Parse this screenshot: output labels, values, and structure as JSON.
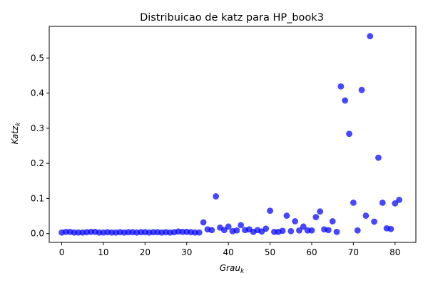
{
  "chart_data": {
    "type": "scatter",
    "title": "Distribuicao de katz para HP_book3",
    "xlabel": "Grau",
    "xlabel_sub": "k",
    "ylabel": "Katz",
    "ylabel_sub": "k",
    "xlim": [
      -3,
      85
    ],
    "ylim": [
      -0.025,
      0.59
    ],
    "xticks": [
      0,
      10,
      20,
      30,
      40,
      50,
      60,
      70,
      80
    ],
    "yticks": [
      0.0,
      0.1,
      0.2,
      0.3,
      0.4,
      0.5
    ],
    "ytick_labels": [
      "0.0",
      "0.1",
      "0.2",
      "0.3",
      "0.4",
      "0.5"
    ],
    "grid": false,
    "marker_color": "#0000ff",
    "marker_alpha": 0.72,
    "points": [
      [
        0,
        0.003
      ],
      [
        1,
        0.005
      ],
      [
        2,
        0.005
      ],
      [
        3,
        0.003
      ],
      [
        4,
        0.003
      ],
      [
        5,
        0.003
      ],
      [
        6,
        0.004
      ],
      [
        7,
        0.005
      ],
      [
        8,
        0.005
      ],
      [
        9,
        0.003
      ],
      [
        10,
        0.003
      ],
      [
        11,
        0.004
      ],
      [
        12,
        0.003
      ],
      [
        13,
        0.003
      ],
      [
        14,
        0.004
      ],
      [
        15,
        0.003
      ],
      [
        16,
        0.004
      ],
      [
        17,
        0.004
      ],
      [
        18,
        0.003
      ],
      [
        19,
        0.004
      ],
      [
        20,
        0.004
      ],
      [
        21,
        0.003
      ],
      [
        22,
        0.004
      ],
      [
        23,
        0.004
      ],
      [
        24,
        0.003
      ],
      [
        25,
        0.004
      ],
      [
        26,
        0.003
      ],
      [
        27,
        0.004
      ],
      [
        28,
        0.006
      ],
      [
        29,
        0.005
      ],
      [
        30,
        0.005
      ],
      [
        31,
        0.004
      ],
      [
        32,
        0.003
      ],
      [
        33,
        0.003
      ],
      [
        34,
        0.032
      ],
      [
        35,
        0.012
      ],
      [
        36,
        0.01
      ],
      [
        37,
        0.106
      ],
      [
        38,
        0.017
      ],
      [
        39,
        0.01
      ],
      [
        40,
        0.02
      ],
      [
        41,
        0.007
      ],
      [
        42,
        0.009
      ],
      [
        43,
        0.024
      ],
      [
        44,
        0.01
      ],
      [
        45,
        0.012
      ],
      [
        46,
        0.005
      ],
      [
        47,
        0.01
      ],
      [
        48,
        0.006
      ],
      [
        49,
        0.014
      ],
      [
        50,
        0.065
      ],
      [
        51,
        0.005
      ],
      [
        52,
        0.005
      ],
      [
        53,
        0.008
      ],
      [
        54,
        0.051
      ],
      [
        55,
        0.007
      ],
      [
        56,
        0.035
      ],
      [
        57,
        0.009
      ],
      [
        58,
        0.02
      ],
      [
        59,
        0.009
      ],
      [
        60,
        0.009
      ],
      [
        61,
        0.047
      ],
      [
        62,
        0.063
      ],
      [
        63,
        0.012
      ],
      [
        64,
        0.01
      ],
      [
        65,
        0.035
      ],
      [
        66,
        0.005
      ],
      [
        67,
        0.419
      ],
      [
        68,
        0.379
      ],
      [
        69,
        0.284
      ],
      [
        70,
        0.088
      ],
      [
        71,
        0.009
      ],
      [
        72,
        0.409
      ],
      [
        73,
        0.051
      ],
      [
        74,
        0.562
      ],
      [
        75,
        0.034
      ],
      [
        76,
        0.216
      ],
      [
        77,
        0.088
      ],
      [
        78,
        0.015
      ],
      [
        79,
        0.013
      ],
      [
        80,
        0.086
      ],
      [
        81,
        0.096
      ]
    ]
  }
}
